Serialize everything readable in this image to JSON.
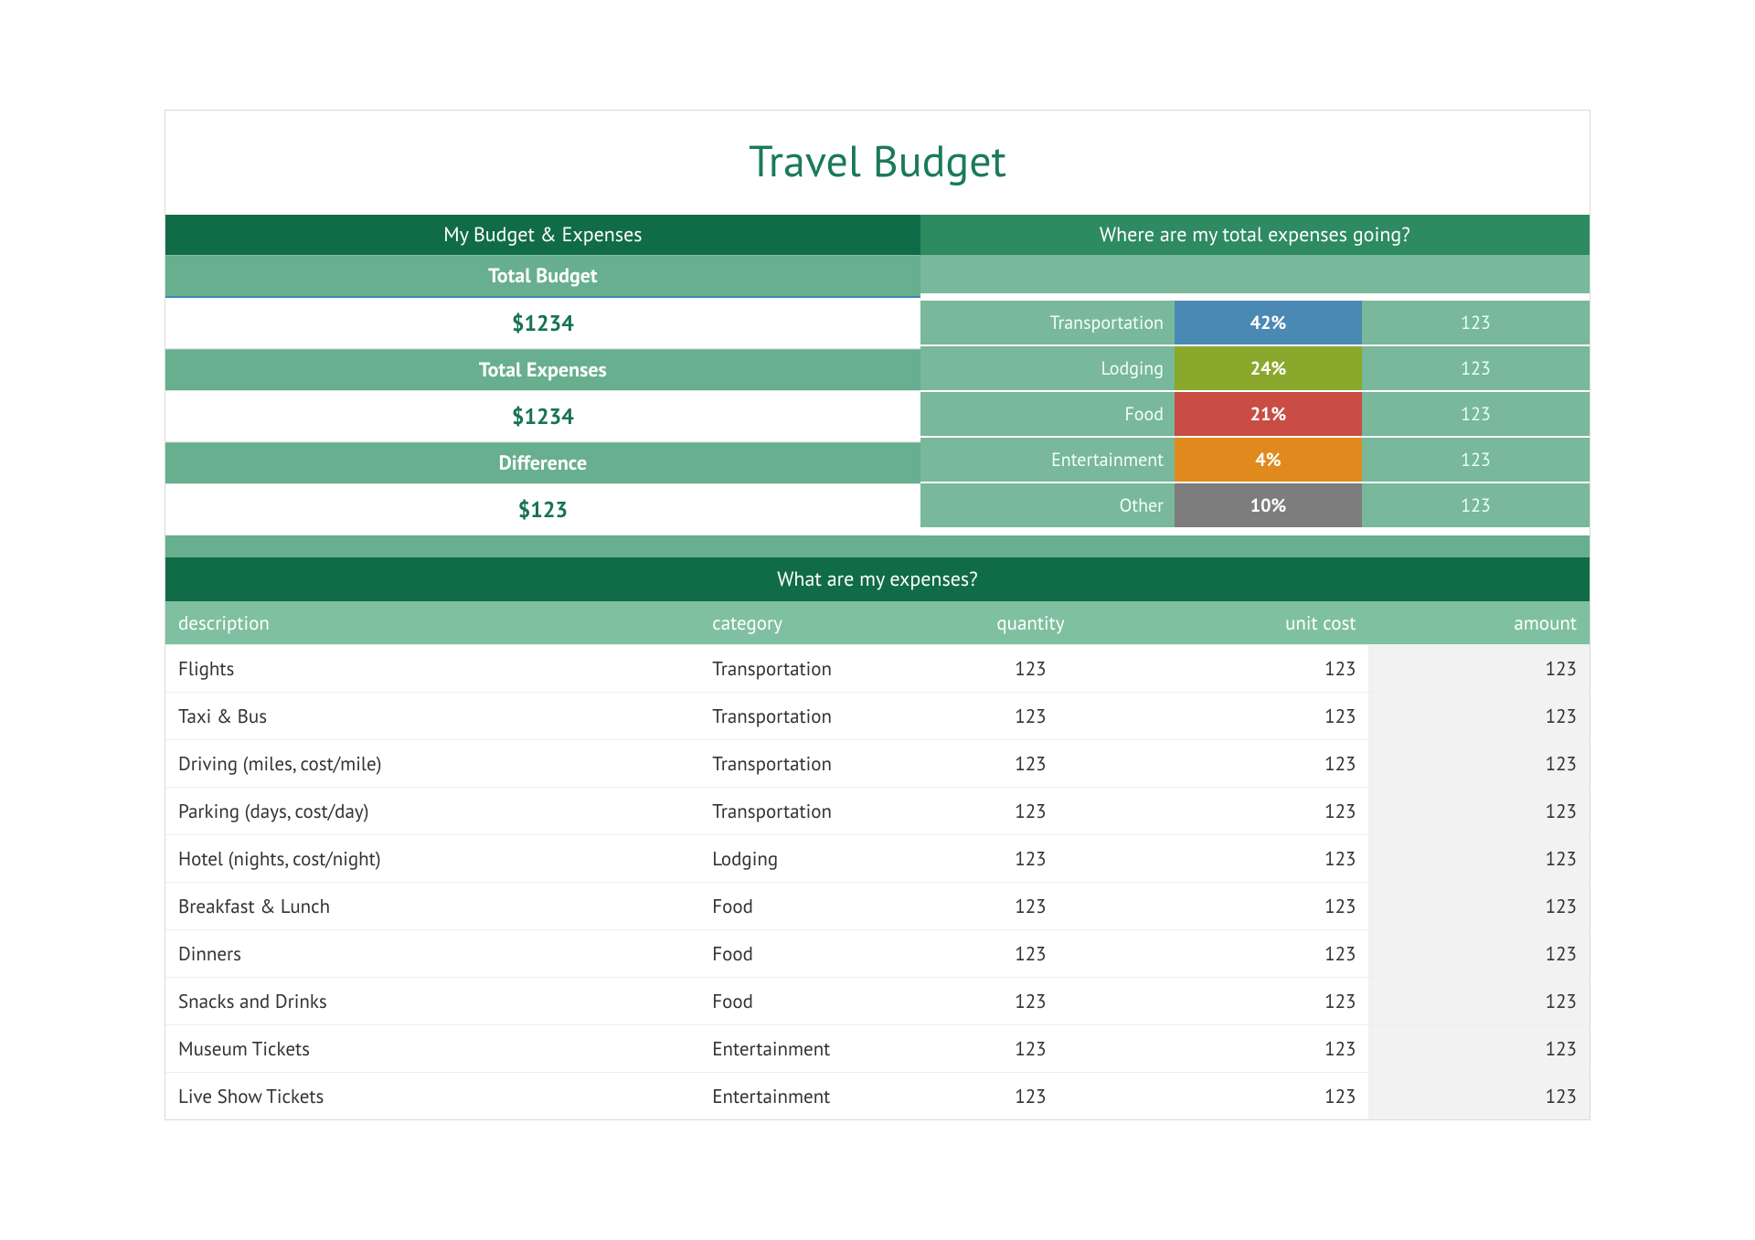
{
  "title": "Travel Budget",
  "colors": {
    "titleText": "#1a7a5c",
    "darkHeader": "#106c47",
    "midHeader": "#2d8a61",
    "subHeader": "#67af8e",
    "lightGreen": "#79b89a",
    "tableHeader": "#7fc0a0",
    "valueText": "#167352",
    "altRow": "#f2f2f2",
    "border": "#d9d9d9"
  },
  "left": {
    "header": "My Budget & Expenses",
    "totalBudgetLabel": "Total Budget",
    "totalBudgetValue": "$1234",
    "totalExpensesLabel": "Total Expenses",
    "totalExpensesValue": "$1234",
    "differenceLabel": "Difference",
    "differenceValue": "$123"
  },
  "right": {
    "header": "Where are my total expenses going?",
    "rows": [
      {
        "label": "Transportation",
        "pct": "42%",
        "val": "123",
        "color": "#4b89b5"
      },
      {
        "label": "Lodging",
        "pct": "24%",
        "val": "123",
        "color": "#8aa82b"
      },
      {
        "label": "Food",
        "pct": "21%",
        "val": "123",
        "color": "#c94d44"
      },
      {
        "label": "Entertainment",
        "pct": "4%",
        "val": "123",
        "color": "#e08a1e"
      },
      {
        "label": "Other",
        "pct": "10%",
        "val": "123",
        "color": "#7d7d7d"
      }
    ]
  },
  "expenses": {
    "header": "What are my expenses?",
    "columns": {
      "description": "description",
      "category": "category",
      "quantity": "quantity",
      "unitCost": "unit cost",
      "amount": "amount"
    },
    "rows": [
      {
        "description": "Flights",
        "category": "Transportation",
        "quantity": "123",
        "unitCost": "123",
        "amount": "123"
      },
      {
        "description": "Taxi & Bus",
        "category": "Transportation",
        "quantity": "123",
        "unitCost": "123",
        "amount": "123"
      },
      {
        "description": "Driving (miles, cost/mile)",
        "category": "Transportation",
        "quantity": "123",
        "unitCost": "123",
        "amount": "123"
      },
      {
        "description": "Parking (days, cost/day)",
        "category": "Transportation",
        "quantity": "123",
        "unitCost": "123",
        "amount": "123"
      },
      {
        "description": "Hotel (nights, cost/night)",
        "category": "Lodging",
        "quantity": "123",
        "unitCost": "123",
        "amount": "123"
      },
      {
        "description": "Breakfast & Lunch",
        "category": "Food",
        "quantity": "123",
        "unitCost": "123",
        "amount": "123"
      },
      {
        "description": "Dinners",
        "category": "Food",
        "quantity": "123",
        "unitCost": "123",
        "amount": "123"
      },
      {
        "description": "Snacks and Drinks",
        "category": "Food",
        "quantity": "123",
        "unitCost": "123",
        "amount": "123"
      },
      {
        "description": "Museum Tickets",
        "category": "Entertainment",
        "quantity": "123",
        "unitCost": "123",
        "amount": "123"
      },
      {
        "description": "Live Show Tickets",
        "category": "Entertainment",
        "quantity": "123",
        "unitCost": "123",
        "amount": "123"
      }
    ]
  }
}
